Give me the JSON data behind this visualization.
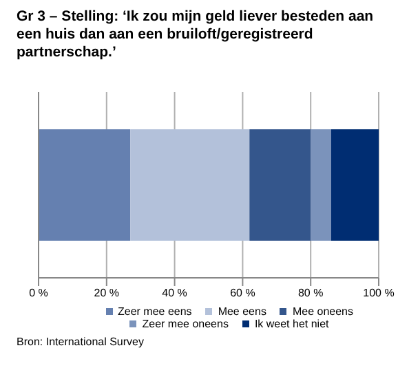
{
  "chart_data": {
    "type": "bar",
    "orientation": "horizontal",
    "stacked": true,
    "title": "Gr 3 –  Stelling: ‘Ik zou mijn geld liever besteden aan een huis dan aan een bruiloft/geregistreerd partnerschap.’",
    "categories": [
      null
    ],
    "series": [
      {
        "name": "Zeer mee eens",
        "color": "#6580b0",
        "values": [
          27
        ]
      },
      {
        "name": "Mee eens",
        "color": "#b3c1da",
        "values": [
          35
        ]
      },
      {
        "name": "Mee oneens",
        "color": "#34568c",
        "values": [
          18
        ]
      },
      {
        "name": "Zeer mee oneens",
        "color": "#7b93bb",
        "values": [
          6
        ]
      },
      {
        "name": "Ik weet het niet",
        "color": "#002d72",
        "values": [
          14
        ]
      }
    ],
    "xlim": [
      0,
      100
    ],
    "xticks": [
      {
        "value": 0,
        "label": "0 %"
      },
      {
        "value": 20,
        "label": "20 %"
      },
      {
        "value": 40,
        "label": "40 %"
      },
      {
        "value": 60,
        "label": "60 %"
      },
      {
        "value": 80,
        "label": "80 %"
      },
      {
        "value": 100,
        "label": "100 %"
      }
    ],
    "grid": "x",
    "legend": "bottom",
    "annotations": [
      "Bron: International Survey"
    ]
  }
}
